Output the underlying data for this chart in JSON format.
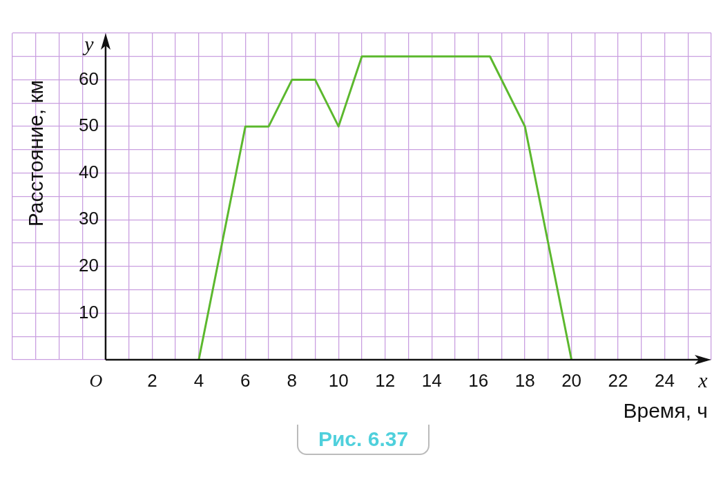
{
  "chart_data": {
    "type": "line",
    "xlabel": "Время, ч",
    "ylabel": "Расстояние, км",
    "annotations": [
      "x",
      "y",
      "Рис.  6.37"
    ],
    "x": [
      4,
      6,
      7,
      8,
      9,
      10,
      11,
      16.5,
      18,
      20
    ],
    "series": [
      {
        "color": "#5cb82e",
        "values": [
          0,
          50,
          50,
          60,
          60,
          50,
          65,
          65,
          50,
          0
        ]
      }
    ],
    "xlim": [
      -4,
      26
    ],
    "xticks": [
      {
        "value": -4,
        "label": null
      },
      {
        "value": -3,
        "label": null
      },
      {
        "value": -2,
        "label": null
      },
      {
        "value": -1,
        "label": null
      },
      {
        "value": 0,
        "label": "O"
      },
      {
        "value": 1,
        "label": null
      },
      2,
      {
        "value": 3,
        "label": null
      },
      4,
      {
        "value": 5,
        "label": null
      },
      6,
      {
        "value": 7,
        "label": null
      },
      8,
      {
        "value": 9,
        "label": null
      },
      10,
      {
        "value": 11,
        "label": null
      },
      12,
      {
        "value": 13,
        "label": null
      },
      14,
      {
        "value": 15,
        "label": null
      },
      16,
      {
        "value": 17,
        "label": null
      },
      18,
      {
        "value": 19,
        "label": null
      },
      20,
      {
        "value": 21,
        "label": null
      },
      22,
      {
        "value": 23,
        "label": null
      },
      24,
      {
        "value": 25,
        "label": null
      },
      {
        "value": 26,
        "label": null
      }
    ],
    "ylim": [
      0,
      70
    ],
    "yticks": [
      {
        "value": 0,
        "label": null
      },
      {
        "value": 5,
        "label": null
      },
      10,
      {
        "value": 15,
        "label": null
      },
      20,
      {
        "value": 25,
        "label": null
      },
      30,
      {
        "value": 35,
        "label": null
      },
      40,
      {
        "value": 45,
        "label": null
      },
      50,
      {
        "value": 55,
        "label": null
      },
      60,
      {
        "value": 65,
        "label": null
      },
      {
        "value": 70,
        "label": null
      }
    ],
    "grid": true,
    "legend": false,
    "marker": "none",
    "line_style": "solid"
  }
}
